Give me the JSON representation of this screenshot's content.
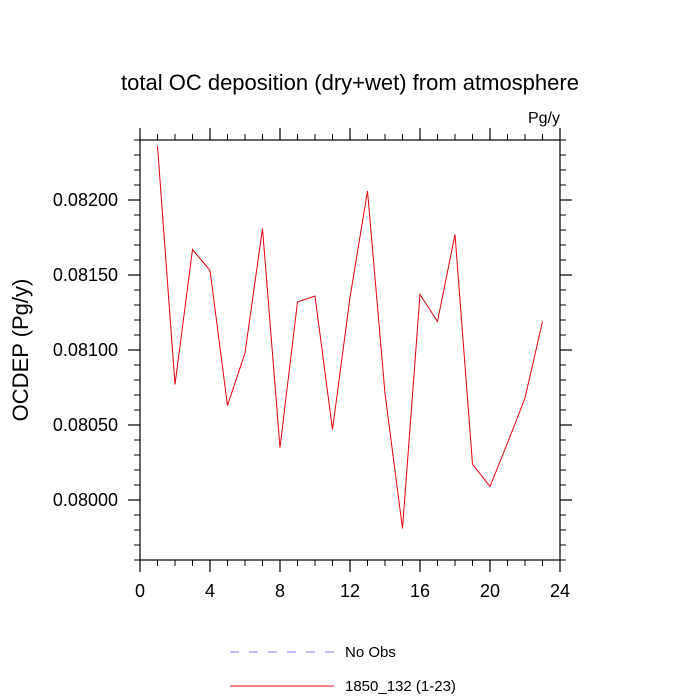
{
  "chart_data": {
    "type": "line",
    "title": "total OC deposition (dry+wet) from atmosphere",
    "units_label": "Pg/y",
    "ylabel": "OCDEP  (Pg/y)",
    "xlabel": "",
    "xlim": [
      0,
      24
    ],
    "ylim": [
      0.0796,
      0.0824
    ],
    "x_ticks": [
      0,
      4,
      8,
      12,
      16,
      20,
      24
    ],
    "x_tick_labels": [
      "0",
      "4",
      "8",
      "12",
      "16",
      "20",
      "24"
    ],
    "y_ticks": [
      0.08,
      0.0805,
      0.081,
      0.0815,
      0.082
    ],
    "y_tick_labels": [
      "0.08000",
      "0.08050",
      "0.08100",
      "0.08150",
      "0.08200"
    ],
    "grid": false,
    "legend_position": "bottom",
    "series": [
      {
        "name": "No Obs",
        "color": "#8080ff",
        "dash": "dashed",
        "x": [],
        "values": []
      },
      {
        "name": "1850_132 (1-23)",
        "color": "#e8000b",
        "dash": "solid",
        "x": [
          1,
          2,
          3,
          4,
          5,
          6,
          7,
          8,
          9,
          10,
          11,
          12,
          13,
          14,
          15,
          16,
          17,
          18,
          19,
          20,
          21,
          22,
          23
        ],
        "values": [
          0.08236,
          0.08077,
          0.08167,
          0.08153,
          0.08063,
          0.08098,
          0.08181,
          0.08035,
          0.08132,
          0.08136,
          0.08047,
          0.08135,
          0.08206,
          0.08071,
          0.07981,
          0.08137,
          0.08119,
          0.08177,
          0.08024,
          0.08009,
          0.08038,
          0.08068,
          0.08119
        ]
      }
    ]
  }
}
